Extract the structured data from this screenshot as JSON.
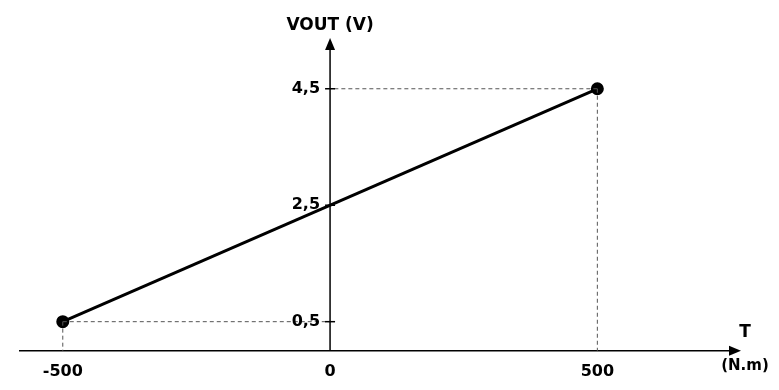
{
  "chart_data": {
    "type": "line",
    "x_label": "T (N.m)",
    "y_label": "VOUT (V)",
    "x": [
      -500,
      500
    ],
    "values": [
      0.5,
      4.5
    ],
    "color": "#000000",
    "marker": "circle",
    "xlim": [
      -580,
      750
    ],
    "ylim": [
      0,
      5.2
    ],
    "xticks": [
      -500,
      0,
      500
    ],
    "yticks": [
      {
        "value": 0.5,
        "label": "0,5"
      },
      {
        "value": 2.5,
        "label": "2,5"
      },
      {
        "value": 4.5,
        "label": "4,5"
      }
    ],
    "grid": false
  }
}
